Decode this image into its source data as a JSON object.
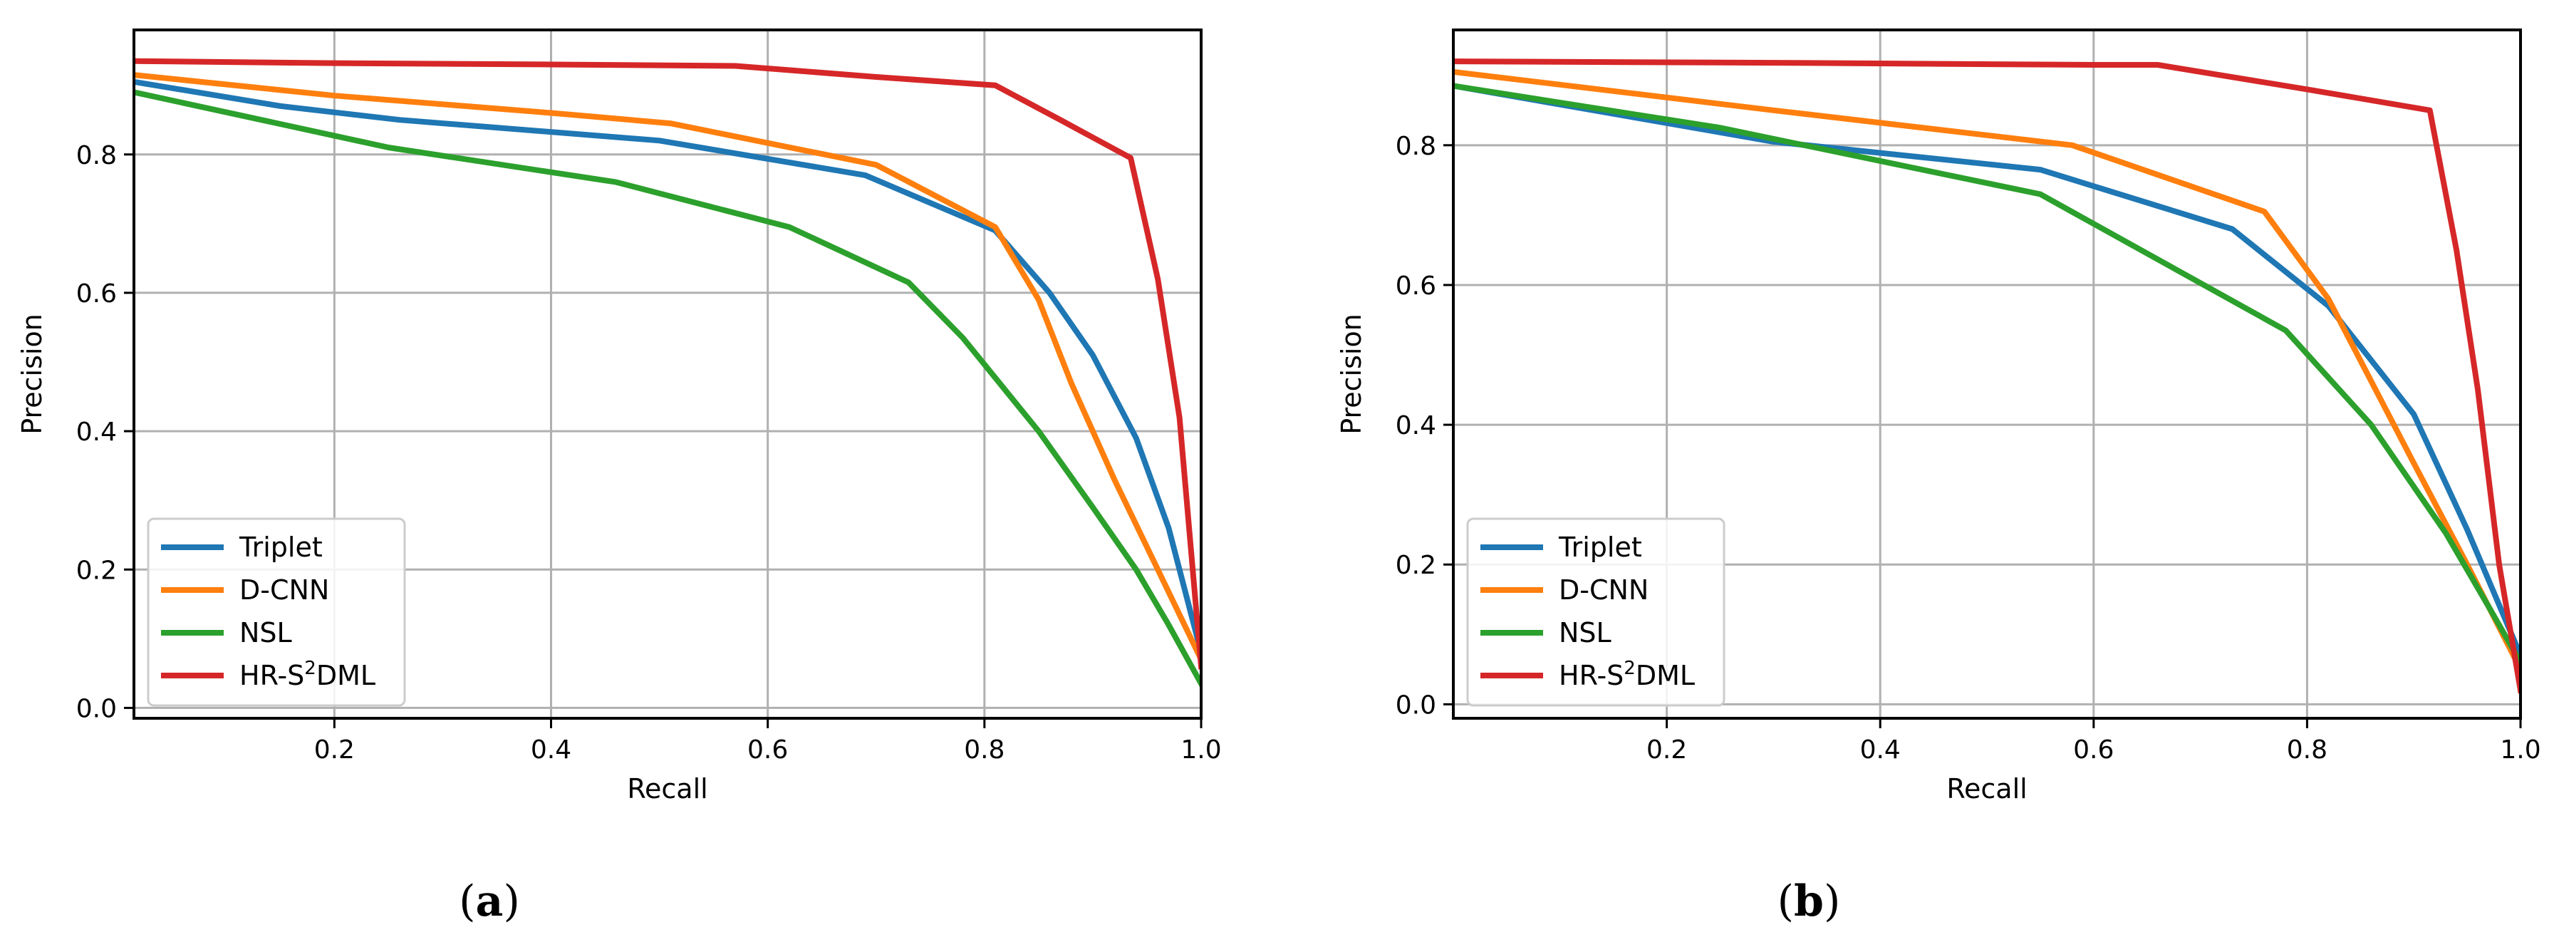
{
  "chart_data": [
    {
      "type": "line",
      "caption": "(a)",
      "caption_open": "(",
      "caption_letter": "a",
      "caption_close": ")",
      "xlabel": "Recall",
      "ylabel": "Precision",
      "xlim": [
        0.015,
        1.0
      ],
      "ylim": [
        -0.015,
        0.98
      ],
      "xticks": [
        0.2,
        0.4,
        0.6,
        0.8,
        1.0
      ],
      "xtick_labels": [
        "0.2",
        "0.4",
        "0.6",
        "0.8",
        "1.0"
      ],
      "yticks": [
        0.0,
        0.2,
        0.4,
        0.6,
        0.8
      ],
      "ytick_labels": [
        "0.0",
        "0.2",
        "0.4",
        "0.6",
        "0.8"
      ],
      "grid": true,
      "legend": {
        "position": "lower-left",
        "entries": [
          {
            "prefix": "Triplet",
            "sup": "",
            "suffix": ""
          },
          {
            "prefix": "D-CNN",
            "sup": "",
            "suffix": ""
          },
          {
            "prefix": "NSL",
            "sup": "",
            "suffix": ""
          },
          {
            "prefix": "HR-S",
            "sup": "2",
            "suffix": "DML"
          }
        ]
      },
      "series": [
        {
          "name": "Triplet",
          "color": "#1f77b4",
          "x": [
            0.015,
            0.15,
            0.26,
            0.5,
            0.69,
            0.81,
            0.86,
            0.9,
            0.94,
            0.97,
            1.0
          ],
          "y": [
            0.905,
            0.87,
            0.85,
            0.82,
            0.77,
            0.69,
            0.6,
            0.51,
            0.39,
            0.26,
            0.08
          ]
        },
        {
          "name": "D-CNN",
          "color": "#ff7f0e",
          "x": [
            0.015,
            0.2,
            0.4,
            0.51,
            0.7,
            0.81,
            0.85,
            0.88,
            0.92,
            0.96,
            1.0
          ],
          "y": [
            0.915,
            0.885,
            0.86,
            0.845,
            0.785,
            0.695,
            0.59,
            0.47,
            0.33,
            0.2,
            0.07
          ]
        },
        {
          "name": "NSL",
          "color": "#2ca02c",
          "x": [
            0.015,
            0.25,
            0.46,
            0.62,
            0.73,
            0.78,
            0.85,
            0.9,
            0.94,
            0.97,
            1.0
          ],
          "y": [
            0.89,
            0.81,
            0.76,
            0.695,
            0.615,
            0.535,
            0.4,
            0.29,
            0.2,
            0.12,
            0.035
          ]
        },
        {
          "name": "HR-S²DML",
          "color": "#d62728",
          "x": [
            0.015,
            0.2,
            0.4,
            0.57,
            0.7,
            0.81,
            0.87,
            0.935,
            0.96,
            0.98,
            1.0
          ],
          "y": [
            0.935,
            0.932,
            0.93,
            0.928,
            0.912,
            0.9,
            0.85,
            0.795,
            0.62,
            0.42,
            0.06
          ]
        }
      ]
    },
    {
      "type": "line",
      "caption": "(b)",
      "caption_open": "(",
      "caption_letter": "b",
      "caption_close": ")",
      "xlabel": "Recall",
      "ylabel": "Precision",
      "xlim": [
        0.0,
        1.0
      ],
      "ylim": [
        -0.02,
        0.965
      ],
      "xticks": [
        0.2,
        0.4,
        0.6,
        0.8,
        1.0
      ],
      "xtick_labels": [
        "0.2",
        "0.4",
        "0.6",
        "0.8",
        "1.0"
      ],
      "yticks": [
        0.0,
        0.2,
        0.4,
        0.6,
        0.8
      ],
      "ytick_labels": [
        "0.0",
        "0.2",
        "0.4",
        "0.6",
        "0.8"
      ],
      "grid": true,
      "legend": {
        "position": "lower-left",
        "entries": [
          {
            "prefix": "Triplet",
            "sup": "",
            "suffix": ""
          },
          {
            "prefix": "D-CNN",
            "sup": "",
            "suffix": ""
          },
          {
            "prefix": "NSL",
            "sup": "",
            "suffix": ""
          },
          {
            "prefix": "HR-S",
            "sup": "2",
            "suffix": "DML"
          }
        ]
      },
      "series": [
        {
          "name": "Triplet",
          "color": "#1f77b4",
          "x": [
            0.0,
            0.3,
            0.55,
            0.73,
            0.82,
            0.9,
            0.95,
            1.0
          ],
          "y": [
            0.885,
            0.805,
            0.765,
            0.68,
            0.57,
            0.415,
            0.25,
            0.07
          ]
        },
        {
          "name": "D-CNN",
          "color": "#ff7f0e",
          "x": [
            0.0,
            0.3,
            0.58,
            0.76,
            0.82,
            0.9,
            0.95,
            1.0
          ],
          "y": [
            0.905,
            0.85,
            0.8,
            0.705,
            0.58,
            0.345,
            0.2,
            0.05
          ]
        },
        {
          "name": "NSL",
          "color": "#2ca02c",
          "x": [
            0.0,
            0.25,
            0.55,
            0.78,
            0.86,
            0.93,
            0.97,
            1.0
          ],
          "y": [
            0.885,
            0.825,
            0.73,
            0.535,
            0.4,
            0.245,
            0.14,
            0.06
          ]
        },
        {
          "name": "HR-S²DML",
          "color": "#d62728",
          "x": [
            0.0,
            0.3,
            0.6,
            0.66,
            0.8,
            0.915,
            0.94,
            0.96,
            0.98,
            1.0
          ],
          "y": [
            0.92,
            0.918,
            0.915,
            0.915,
            0.88,
            0.85,
            0.65,
            0.45,
            0.2,
            0.02
          ]
        }
      ]
    }
  ]
}
